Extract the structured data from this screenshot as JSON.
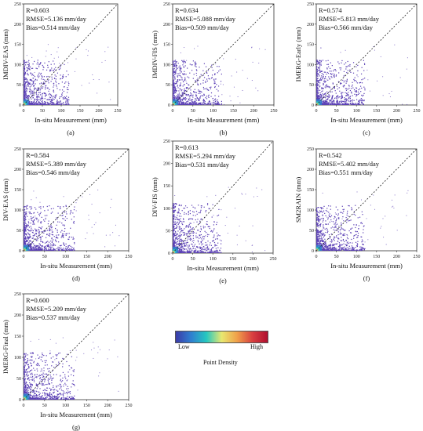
{
  "chart_data": [
    {
      "type": "scatter",
      "label": "(a)",
      "ylabel": "IMDIV-EAS (mm)",
      "xlabel": "In-situ Measurement (mm)",
      "xlim": [
        0,
        250
      ],
      "ylim": [
        0,
        250
      ],
      "xticks": [
        0,
        50,
        100,
        150,
        200,
        250
      ],
      "yticks": [
        0,
        50,
        100,
        150,
        200,
        250
      ],
      "stats": [
        "R=0.603",
        "RMSE=5.136 mm/day",
        "Bias=0.514 mm/day"
      ],
      "reference_line": "1:1"
    },
    {
      "type": "scatter",
      "label": "(b)",
      "ylabel": "IMDIV-FIS (mm)",
      "xlabel": "In-situ Measurement (mm)",
      "xlim": [
        0,
        250
      ],
      "ylim": [
        0,
        250
      ],
      "xticks": [
        0,
        50,
        100,
        150,
        200,
        250
      ],
      "yticks": [
        0,
        50,
        100,
        150,
        200,
        250
      ],
      "stats": [
        "R=0.634",
        "RMSE=5.088 mm/day",
        "Bias=0.509 mm/day"
      ],
      "reference_line": "1:1"
    },
    {
      "type": "scatter",
      "label": "(c)",
      "ylabel": "IMERG-Early (mm)",
      "xlabel": "In-situ Measurement (mm)",
      "xlim": [
        0,
        250
      ],
      "ylim": [
        0,
        250
      ],
      "xticks": [
        0,
        50,
        100,
        150,
        200,
        250
      ],
      "yticks": [
        0,
        50,
        100,
        150,
        200,
        250
      ],
      "stats": [
        "R=0.574",
        "RMSE=5.813 mm/day",
        "Bias=0.566 mm/day"
      ],
      "reference_line": "1:1"
    },
    {
      "type": "scatter",
      "label": "(d)",
      "ylabel": "DIV-EAS (mm)",
      "xlabel": "In-situ Measurement (mm)",
      "xlim": [
        0,
        250
      ],
      "ylim": [
        0,
        250
      ],
      "xticks": [
        0,
        50,
        100,
        150,
        200,
        250
      ],
      "yticks": [
        0,
        50,
        100,
        150,
        200,
        250
      ],
      "stats": [
        "R=0.584",
        "RMSE=5.389 mm/day",
        "Bias=0.546 mm/day"
      ],
      "reference_line": "1:1"
    },
    {
      "type": "scatter",
      "label": "(e)",
      "ylabel": "DIV-FIS (mm)",
      "xlabel": "In-situ Measurement (mm)",
      "xlim": [
        0,
        250
      ],
      "ylim": [
        0,
        250
      ],
      "xticks": [
        0,
        50,
        100,
        150,
        200,
        250
      ],
      "yticks": [
        0,
        50,
        100,
        150,
        200,
        250
      ],
      "stats": [
        "R=0.613",
        "RMSE=5.294 mm/day",
        "Bias=0.531 mm/day"
      ],
      "reference_line": "1:1"
    },
    {
      "type": "scatter",
      "label": "(f)",
      "ylabel": "SM2RAIN (mm)",
      "xlabel": "In-situ Measurement (mm)",
      "xlim": [
        0,
        250
      ],
      "ylim": [
        0,
        250
      ],
      "xticks": [
        0,
        50,
        100,
        150,
        200,
        250
      ],
      "yticks": [
        0,
        50,
        100,
        150,
        200,
        250
      ],
      "stats": [
        "R=0.542",
        "RMSE=5.402 mm/day",
        "Bias=0.551 mm/day"
      ],
      "reference_line": "1:1"
    },
    {
      "type": "scatter",
      "label": "(g)",
      "ylabel": "IMERG-Final (mm)",
      "xlabel": "In-situ Measurement (mm)",
      "xlim": [
        0,
        250
      ],
      "ylim": [
        0,
        250
      ],
      "xticks": [
        0,
        50,
        100,
        150,
        200,
        250
      ],
      "yticks": [
        0,
        50,
        100,
        150,
        200,
        250
      ],
      "stats": [
        "R=0.600",
        "RMSE=5.209 mm/day",
        "Bias=0.537 mm/day"
      ],
      "reference_line": "1:1"
    }
  ],
  "legend": {
    "low_label": "Low",
    "high_label": "High",
    "title": "Point Density",
    "colors": [
      "#3b3ba8",
      "#2f7fd0",
      "#25c7c0",
      "#e8e870",
      "#f0a04a",
      "#d94040",
      "#b01030"
    ]
  },
  "point_color": "#5a3fb5"
}
